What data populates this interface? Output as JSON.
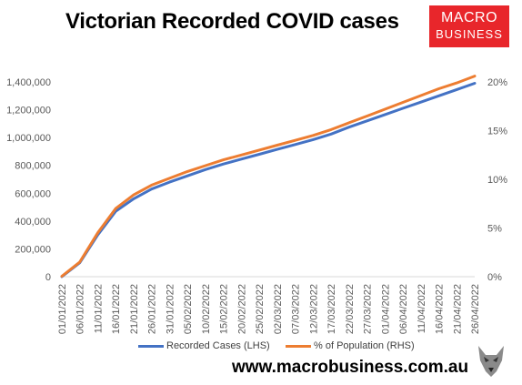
{
  "header": {
    "title": "Victorian Recorded COVID cases"
  },
  "logo": {
    "line1": "MACRO",
    "line2": "BUSINESS"
  },
  "footer": {
    "website": "www.macrobusiness.com.au"
  },
  "chart_data": {
    "type": "line",
    "categories": [
      "01/01/2022",
      "06/01/2022",
      "11/01/2022",
      "16/01/2022",
      "21/01/2022",
      "26/01/2022",
      "31/01/2022",
      "05/02/2022",
      "10/02/2022",
      "15/02/2022",
      "20/02/2022",
      "25/02/2022",
      "02/03/2022",
      "07/03/2022",
      "12/03/2022",
      "17/03/2022",
      "22/03/2022",
      "27/03/2022",
      "01/04/2022",
      "06/04/2022",
      "11/04/2022",
      "16/04/2022",
      "21/04/2022",
      "26/04/2022"
    ],
    "series": [
      {
        "name": "Recorded Cases (LHS)",
        "axis": "left",
        "color": "#4472c4",
        "values": [
          0,
          100000,
          300000,
          470000,
          560000,
          630000,
          680000,
          725000,
          770000,
          810000,
          845000,
          880000,
          915000,
          950000,
          985000,
          1025000,
          1075000,
          1120000,
          1165000,
          1210000,
          1255000,
          1300000,
          1345000,
          1390000
        ]
      },
      {
        "name": "% of Population (RHS)",
        "axis": "right",
        "color": "#ed7d31",
        "values": [
          0.05,
          1.5,
          4.5,
          7.0,
          8.4,
          9.4,
          10.1,
          10.8,
          11.4,
          12.0,
          12.5,
          13.0,
          13.5,
          14.0,
          14.5,
          15.1,
          15.8,
          16.5,
          17.2,
          17.9,
          18.6,
          19.3,
          19.9,
          20.6
        ]
      }
    ],
    "y_left": {
      "min": 0,
      "max": 1400000,
      "ticks": [
        "0",
        "200,000",
        "400,000",
        "600,000",
        "800,000",
        "1,000,000",
        "1,200,000",
        "1,400,000"
      ]
    },
    "y_right": {
      "min": 0,
      "max": 20,
      "ticks": [
        "0%",
        "5%",
        "10%",
        "15%",
        "20%"
      ]
    },
    "grid": false,
    "legend": "bottom"
  }
}
